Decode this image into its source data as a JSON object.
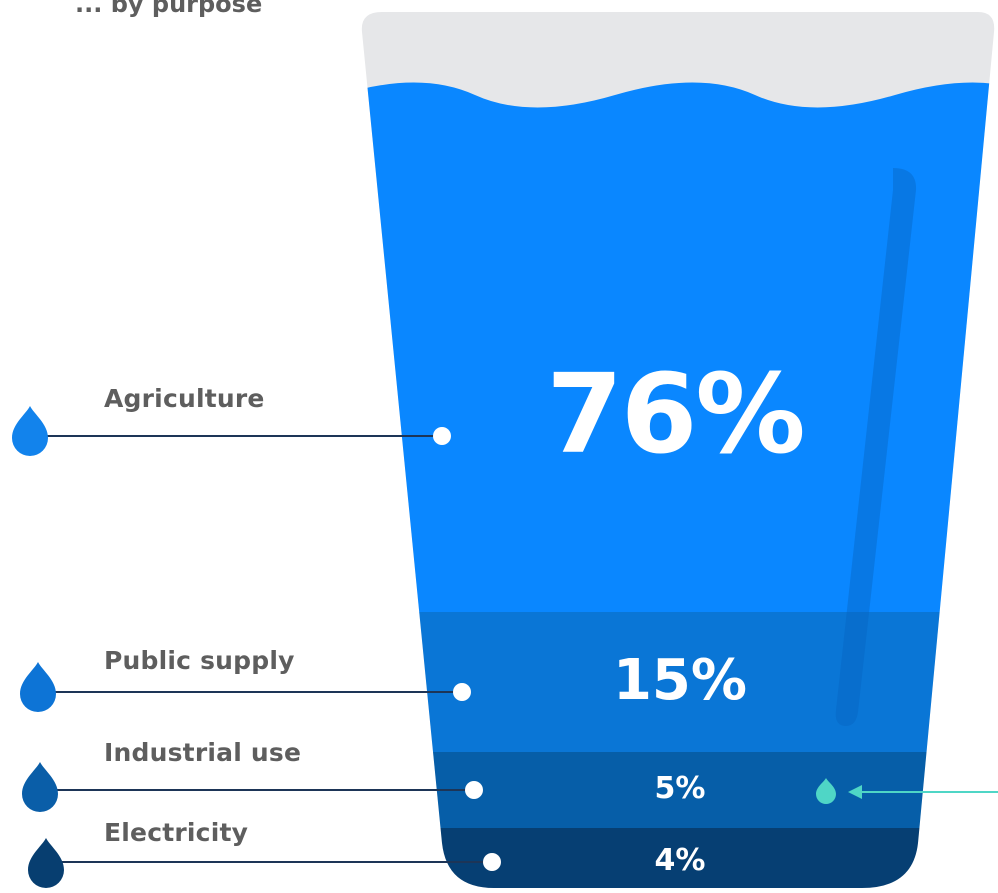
{
  "caption": "... by purpose",
  "colors": {
    "rim": "#e6e7e9",
    "agriculture": "#0a87ff",
    "public_supply": "#0a76d6",
    "industrial_use": "#065ea8",
    "electricity": "#063f73",
    "connector": "#1d3557",
    "pointer": "#4fd6c6"
  },
  "segments": [
    {
      "key": "agriculture",
      "label": "Agriculture",
      "value": 76,
      "display": "76%"
    },
    {
      "key": "public_supply",
      "label": "Public supply",
      "value": 15,
      "display": "15%"
    },
    {
      "key": "industrial_use",
      "label": "Industrial use",
      "value": 5,
      "display": "5%"
    },
    {
      "key": "electricity",
      "label": "Electricity",
      "value": 4,
      "display": "4%"
    }
  ]
}
